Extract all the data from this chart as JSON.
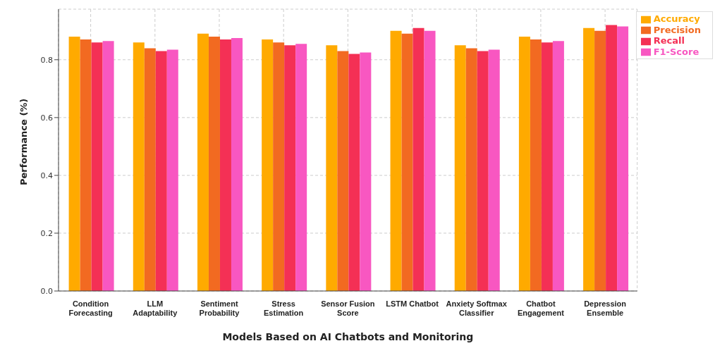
{
  "chart_data": {
    "type": "bar",
    "xlabel": "Models Based on AI Chatbots and Monitoring",
    "ylabel": "Performance (%)",
    "categories": [
      "Condition Forecasting",
      "LLM Adaptability",
      "Sentiment Probability",
      "Stress Estimation",
      "Sensor Fusion Score",
      "LSTM Chatbot",
      "Anxiety Softmax Classifier",
      "Chatbot Engagement",
      "Depression Ensemble"
    ],
    "series": [
      {
        "name": "Accuracy",
        "color": "#ffaa00",
        "values": [
          0.88,
          0.86,
          0.89,
          0.87,
          0.85,
          0.9,
          0.85,
          0.88,
          0.91
        ]
      },
      {
        "name": "Precision",
        "color": "#f26a21",
        "values": [
          0.87,
          0.84,
          0.88,
          0.86,
          0.83,
          0.89,
          0.84,
          0.87,
          0.9
        ]
      },
      {
        "name": "Recall",
        "color": "#f43055",
        "values": [
          0.86,
          0.83,
          0.87,
          0.85,
          0.82,
          0.91,
          0.83,
          0.86,
          0.92
        ]
      },
      {
        "name": "F1-Score",
        "color": "#f857c1",
        "values": [
          0.865,
          0.835,
          0.875,
          0.855,
          0.825,
          0.9,
          0.835,
          0.865,
          0.915
        ]
      }
    ],
    "ylim": [
      0,
      0.975
    ],
    "yticks": [
      {
        "value": 0,
        "label": "0.0"
      },
      {
        "value": 0.2,
        "label": "0.2"
      },
      {
        "value": 0.4,
        "label": "0.4"
      },
      {
        "value": 0.6,
        "label": "0.6"
      },
      {
        "value": 0.8,
        "label": "0.8"
      }
    ],
    "grid": true,
    "legend": "top right"
  }
}
